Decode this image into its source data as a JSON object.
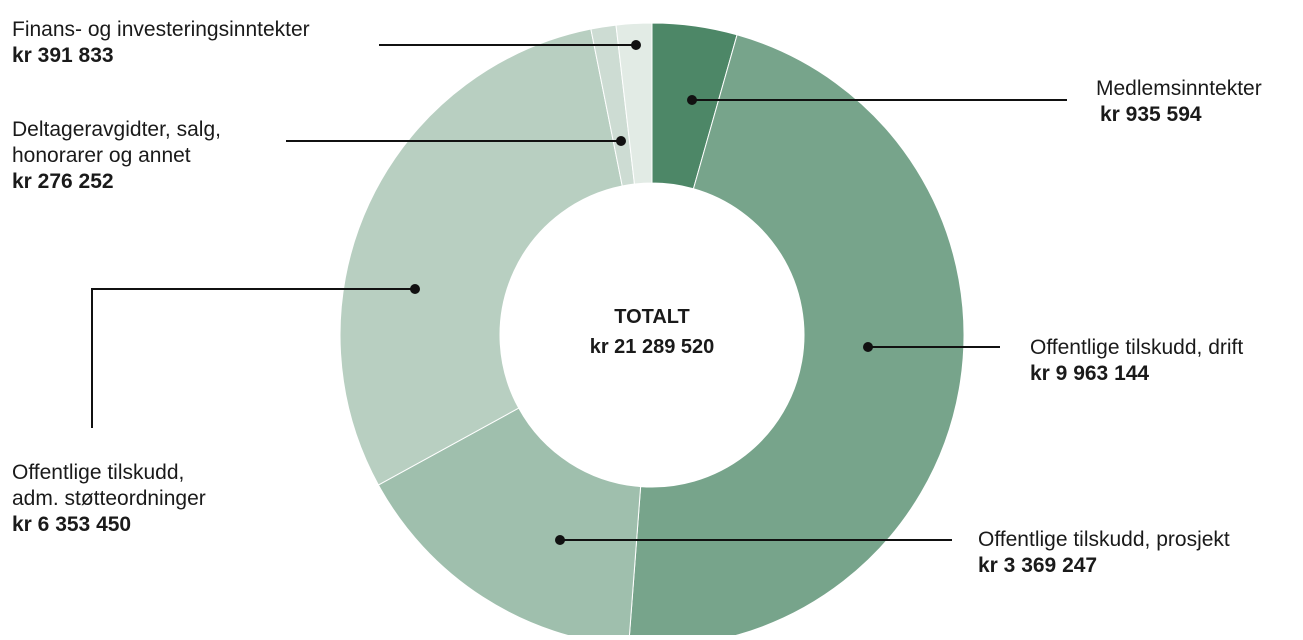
{
  "chart_data": {
    "type": "pie",
    "subtype": "donut",
    "center_label": "TOTALT",
    "center_value": "kr 21 289 520",
    "total": 21289520,
    "slices": [
      {
        "label": "Medlemsinntekter",
        "amount_text": "kr 935 594",
        "value": 935594,
        "color": "#4d8767"
      },
      {
        "label": "Offentlige tilskudd, drift",
        "amount_text": "kr 9 963 144",
        "value": 9963144,
        "color": "#77a48b"
      },
      {
        "label": "Offentlige tilskudd, prosjekt",
        "amount_text": "kr 3 369 247",
        "value": 3369247,
        "color": "#9fbfad"
      },
      {
        "label_line1": "Offentlige tilskudd,",
        "label_line2": "adm. støtteordninger",
        "amount_text": "kr 6 353 450",
        "value": 6353450,
        "color": "#b8cfc1"
      },
      {
        "label_line1": "Deltageravgidter, salg,",
        "label_line2": "honorarer og annet",
        "amount_text": "kr 276 252",
        "value": 276252,
        "color": "#cddcd3"
      },
      {
        "label": "Finans- og investeringsinntekter",
        "amount_text": "kr 391 833",
        "value": 391833,
        "color": "#e2ebe5"
      }
    ]
  }
}
